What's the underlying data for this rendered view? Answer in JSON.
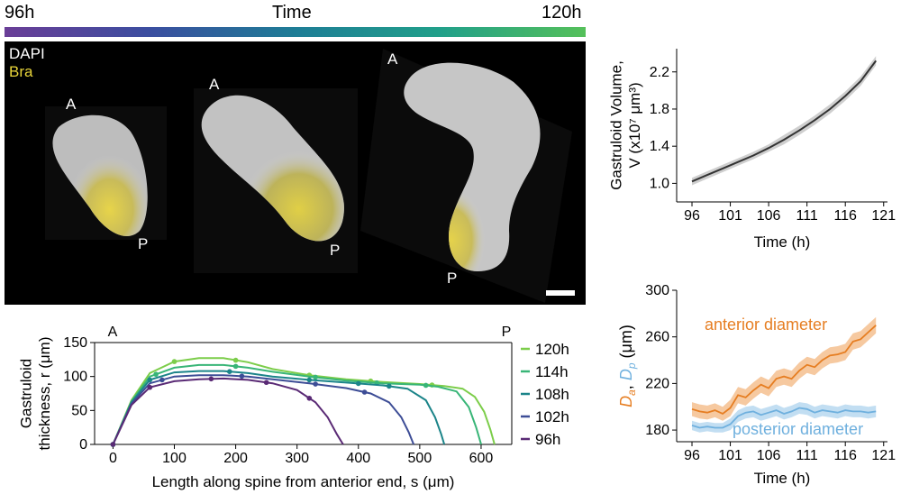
{
  "timebar": {
    "start": "96h",
    "title": "Time",
    "end": "120h",
    "colors": [
      "#6a3e97",
      "#3b4ea0",
      "#1e7d96",
      "#21a08a",
      "#55c05a"
    ]
  },
  "micro": {
    "channels": [
      {
        "name": "DAPI",
        "color": "#c8c8c8"
      },
      {
        "name": "Bra",
        "color": "#e8d43a"
      }
    ],
    "anterior_label": "A",
    "posterior_label": "P"
  },
  "chart_data": [
    {
      "id": "thickness",
      "type": "line",
      "title": "",
      "xlabel": "Length along spine from anterior end, s (μm)",
      "ylabel_line1": "Gastruloid",
      "ylabel_line2": "thickness, r (μm)",
      "xlim": [
        -30,
        650
      ],
      "ylim": [
        0,
        150
      ],
      "xticks": [
        0,
        100,
        200,
        300,
        400,
        500,
        600
      ],
      "yticks": [
        0,
        50,
        100,
        150
      ],
      "corner_left": "A",
      "corner_right": "P",
      "series": [
        {
          "name": "120h",
          "color": "#7ccd4a",
          "x": [
            0,
            30,
            60,
            100,
            140,
            180,
            220,
            260,
            320,
            380,
            440,
            500,
            540,
            570,
            590,
            605,
            615,
            622
          ],
          "y": [
            0,
            65,
            105,
            122,
            127,
            127,
            121,
            111,
            102,
            96,
            92,
            89,
            86,
            82,
            70,
            48,
            22,
            0
          ],
          "markers": [
            100,
            200,
            320,
            420,
            520
          ]
        },
        {
          "name": "114h",
          "color": "#38b577",
          "x": [
            0,
            30,
            60,
            100,
            140,
            180,
            220,
            260,
            320,
            380,
            440,
            500,
            530,
            560,
            580,
            592,
            600
          ],
          "y": [
            0,
            63,
            100,
            113,
            117,
            117,
            113,
            107,
            100,
            94,
            90,
            88,
            85,
            78,
            55,
            25,
            0
          ],
          "markers": [
            70,
            200,
            330,
            430,
            510
          ]
        },
        {
          "name": "108h",
          "color": "#1b8489",
          "x": [
            0,
            30,
            60,
            100,
            140,
            180,
            220,
            260,
            320,
            380,
            440,
            480,
            510,
            525,
            535,
            540
          ],
          "y": [
            0,
            62,
            95,
            106,
            108,
            108,
            105,
            100,
            95,
            91,
            87,
            82,
            65,
            40,
            15,
            0
          ],
          "markers": [
            60,
            190,
            320,
            400,
            450
          ]
        },
        {
          "name": "102h",
          "color": "#3d4d96",
          "x": [
            0,
            30,
            60,
            100,
            140,
            180,
            220,
            260,
            320,
            380,
            420,
            450,
            470,
            482,
            490
          ],
          "y": [
            0,
            60,
            90,
            100,
            102,
            102,
            100,
            96,
            90,
            83,
            75,
            62,
            40,
            18,
            0
          ],
          "markers": [
            80,
            210,
            330,
            410
          ]
        },
        {
          "name": "96h",
          "color": "#5a2a75",
          "x": [
            0,
            30,
            60,
            100,
            140,
            180,
            220,
            260,
            300,
            330,
            350,
            365,
            375
          ],
          "y": [
            0,
            58,
            84,
            93,
            96,
            97,
            95,
            90,
            80,
            62,
            40,
            15,
            0
          ],
          "markers": [
            60,
            160,
            250,
            320
          ]
        }
      ]
    },
    {
      "id": "volume",
      "type": "line",
      "title": "",
      "xlabel": "Time (h)",
      "ylabel_line1": "Gastruloid Volume,",
      "ylabel_line2": "V (x10⁷ μm³)",
      "xlim": [
        94,
        121.5
      ],
      "ylim": [
        0.8,
        2.45
      ],
      "xticks": [
        96,
        101,
        106,
        111,
        116,
        121
      ],
      "yticks": [
        1.0,
        1.4,
        1.8,
        2.2
      ],
      "ytick_labels": [
        "1.0",
        "1.4",
        "1.8",
        "2.2"
      ],
      "series": [
        {
          "name": "Volume",
          "color": "#333333",
          "band_color": "#cfcfcf",
          "x": [
            96,
            98,
            100,
            102,
            104,
            106,
            108,
            110,
            112,
            114,
            116,
            118,
            120
          ],
          "y": [
            1.02,
            1.09,
            1.16,
            1.23,
            1.3,
            1.38,
            1.47,
            1.57,
            1.68,
            1.8,
            1.94,
            2.1,
            2.32
          ],
          "err": [
            0.04,
            0.04,
            0.04,
            0.04,
            0.04,
            0.04,
            0.05,
            0.05,
            0.05,
            0.05,
            0.05,
            0.05,
            0.05
          ]
        }
      ]
    },
    {
      "id": "diameter",
      "type": "line",
      "title": "",
      "xlabel": "Time (h)",
      "ylabel_part1": "D",
      "ylabel_sub1": "a",
      "ylabel_sep": ", ",
      "ylabel_part2": "D",
      "ylabel_sub2": "p",
      "ylabel_units": " (μm)",
      "xlim": [
        94,
        121.5
      ],
      "ylim": [
        170,
        300
      ],
      "xticks": [
        96,
        101,
        106,
        111,
        116,
        121
      ],
      "yticks": [
        180,
        220,
        260,
        300
      ],
      "series": [
        {
          "name": "anterior diameter",
          "color": "#e67e22",
          "band_color": "#f6c9a0",
          "x": [
            96,
            97,
            98,
            99,
            100,
            101,
            102,
            103,
            104,
            105,
            106,
            107,
            108,
            109,
            110,
            111,
            112,
            113,
            114,
            115,
            116,
            117,
            118,
            119,
            120
          ],
          "y": [
            198,
            196,
            195,
            197,
            194,
            199,
            210,
            208,
            214,
            219,
            216,
            224,
            226,
            224,
            231,
            236,
            234,
            240,
            244,
            245,
            247,
            256,
            258,
            264,
            270
          ],
          "err": [
            6,
            6,
            6,
            6,
            6,
            7,
            7,
            7,
            7,
            7,
            7,
            7,
            7,
            7,
            7,
            7,
            7,
            7,
            7,
            7,
            7,
            7,
            7,
            7,
            7
          ]
        },
        {
          "name": "posterior diameter",
          "color": "#6fb0de",
          "band_color": "#c2def2",
          "x": [
            96,
            97,
            98,
            99,
            100,
            101,
            102,
            103,
            104,
            105,
            106,
            107,
            108,
            109,
            110,
            111,
            112,
            113,
            114,
            115,
            116,
            117,
            118,
            119,
            120
          ],
          "y": [
            184,
            182,
            183,
            182,
            182,
            185,
            192,
            195,
            196,
            193,
            195,
            197,
            194,
            196,
            199,
            198,
            195,
            197,
            196,
            195,
            197,
            196,
            196,
            195,
            196
          ],
          "err": [
            4,
            4,
            4,
            4,
            4,
            5,
            5,
            5,
            5,
            5,
            5,
            5,
            5,
            5,
            5,
            5,
            5,
            5,
            5,
            5,
            5,
            5,
            5,
            5,
            5
          ]
        }
      ]
    }
  ]
}
